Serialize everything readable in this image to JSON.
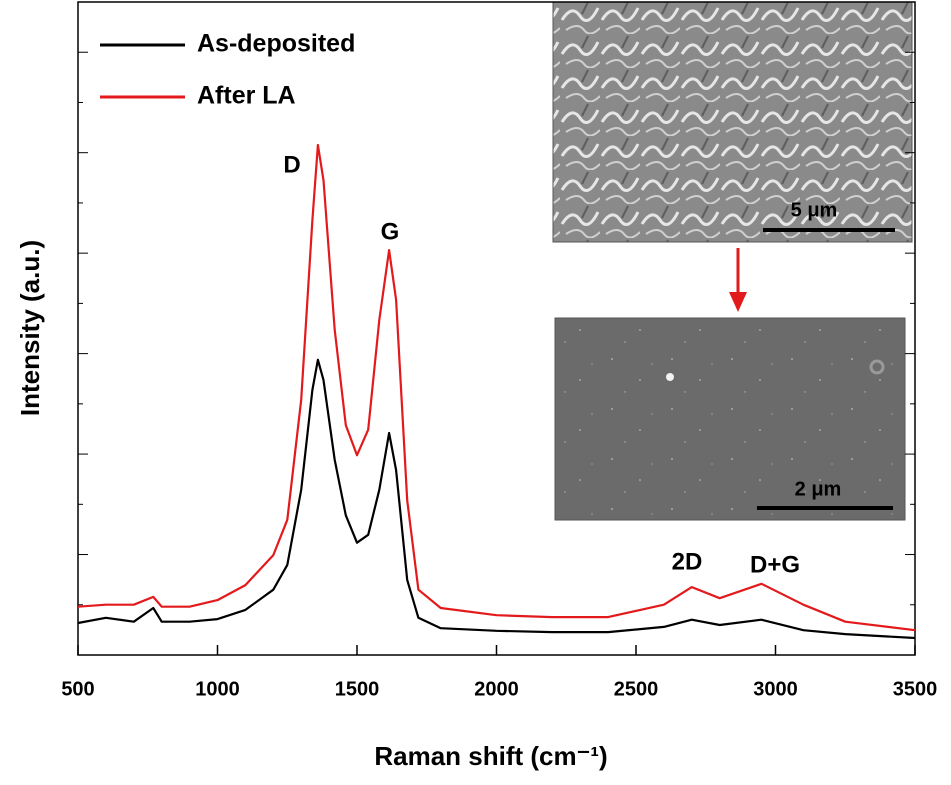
{
  "chart_data": {
    "type": "line",
    "x_label": "Raman shift (cm⁻¹)",
    "y_label": "Intensity (a.u.)",
    "x": [
      500,
      600,
      700,
      770,
      800,
      900,
      1000,
      1100,
      1200,
      1250,
      1300,
      1340,
      1360,
      1380,
      1420,
      1460,
      1500,
      1540,
      1580,
      1615,
      1640,
      1680,
      1720,
      1800,
      2000,
      2200,
      2400,
      2600,
      2700,
      2800,
      2950,
      3100,
      3250,
      3500
    ],
    "series": [
      {
        "name": "As-deposited",
        "color": "#000000",
        "values": [
          4.9,
          5.7,
          5.1,
          7.2,
          5.1,
          5.1,
          5.5,
          6.9,
          10.0,
          13.8,
          25.3,
          40.6,
          45.2,
          42.1,
          29.9,
          21.4,
          17.2,
          18.4,
          25.3,
          34.0,
          28.3,
          11.5,
          5.7,
          4.1,
          3.7,
          3.5,
          3.5,
          4.3,
          5.4,
          4.6,
          5.4,
          3.8,
          3.2,
          2.6
        ]
      },
      {
        "name": "After LA",
        "color": "#e31a1c",
        "values": [
          7.4,
          7.7,
          7.7,
          8.9,
          7.4,
          7.4,
          8.4,
          10.7,
          15.3,
          20.7,
          39.1,
          66.6,
          78.1,
          72.7,
          49.8,
          35.2,
          30.6,
          34.5,
          51.3,
          62.0,
          54.4,
          23.7,
          10.0,
          7.2,
          6.1,
          5.8,
          5.8,
          7.7,
          10.4,
          8.7,
          10.9,
          7.7,
          5.1,
          3.8
        ]
      }
    ],
    "xlim": [
      500,
      3500
    ],
    "xticks": [
      500,
      1000,
      1500,
      2000,
      2500,
      3000,
      3500
    ],
    "ylim": [
      0,
      100
    ],
    "legend": "upper left",
    "annotations": [
      "D",
      "G",
      "2D",
      "D+G"
    ],
    "inset_scale_labels": [
      "5 μm",
      "2 μm"
    ]
  }
}
